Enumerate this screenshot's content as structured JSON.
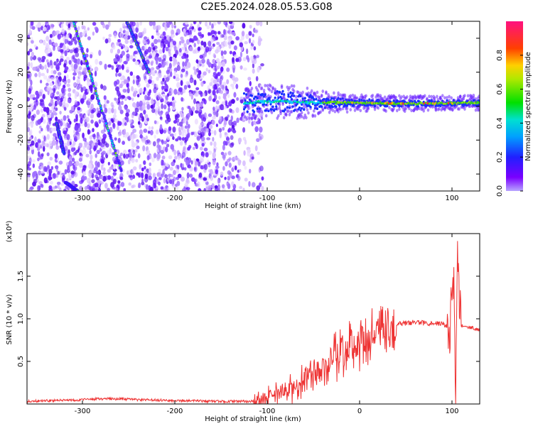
{
  "title": "C2E5.2024.028.05.53.G08",
  "chart_data": [
    {
      "type": "heatmap",
      "xlabel": "Height of straight line (km)",
      "ylabel": "Frequency (Hz)",
      "xlim": [
        -360,
        130
      ],
      "ylim": [
        -50,
        50
      ],
      "xticks": [
        -300,
        -200,
        -100,
        0,
        100
      ],
      "xtick_labels": [
        "-300",
        "-200",
        "-100",
        "0",
        "100"
      ],
      "yticks": [
        -40,
        -20,
        0,
        20,
        40
      ],
      "ytick_labels": [
        "-40",
        "-20",
        "0",
        "20",
        "40"
      ],
      "colorbar": {
        "label": "Normalized spectral amplitude",
        "range": [
          0.0,
          1.0
        ],
        "ticks": [
          0.0,
          0.2,
          0.4,
          0.6,
          0.8
        ],
        "tick_labels": [
          "0.0",
          "0.2",
          "0.4",
          "0.6",
          "0.8"
        ],
        "colormap": "purple-blue-cyan-green-yellow-red-magenta"
      },
      "noise_region_x": [
        -360,
        -110
      ],
      "signal_band": [
        {
          "x": -125,
          "freq": 2,
          "width": 8
        },
        {
          "x": -90,
          "freq": 3,
          "width": 9
        },
        {
          "x": -60,
          "freq": 2,
          "width": 7
        },
        {
          "x": -30,
          "freq": 2,
          "width": 4
        },
        {
          "x": 0,
          "freq": 2,
          "width": 3
        },
        {
          "x": 50,
          "freq": 1.5,
          "width": 2.5
        },
        {
          "x": 130,
          "freq": 2,
          "width": 2.5
        }
      ],
      "slanted_tracks": [
        {
          "x": [
            -328,
            -320
          ],
          "freq": [
            -10,
            -28
          ]
        },
        {
          "x": [
            -310,
            -258
          ],
          "freq": [
            50,
            -38
          ]
        },
        {
          "x": [
            -252,
            -228
          ],
          "freq": [
            50,
            20
          ]
        },
        {
          "x": [
            -318,
            -305
          ],
          "freq": [
            -45,
            -50
          ]
        }
      ]
    },
    {
      "type": "line",
      "xlabel": "Height of straight line (km)",
      "ylabel": "SNR (10 * v/v)",
      "y_multiplier": "(x10⁴)",
      "xlim": [
        -360,
        130
      ],
      "ylim": [
        0,
        2.0
      ],
      "xticks": [
        -300,
        -200,
        -100,
        0,
        100
      ],
      "xtick_labels": [
        "-300",
        "-200",
        "-100",
        "0",
        "100"
      ],
      "yticks": [
        0.5,
        1.0,
        1.5
      ],
      "ytick_labels": [
        "0.5",
        "1.0",
        "1.5"
      ],
      "series": [
        {
          "color": "#ee3333",
          "x": [
            -360,
            -340,
            -300,
            -280,
            -260,
            -240,
            -200,
            -150,
            -120,
            -110,
            -100,
            -90,
            -80,
            -70,
            -60,
            -50,
            -40,
            -30,
            -20,
            -10,
            0,
            10,
            20,
            30,
            40,
            50,
            60,
            70,
            80,
            90,
            98,
            102,
            104,
            106,
            110,
            120,
            130
          ],
          "y": [
            0.03,
            0.04,
            0.05,
            0.06,
            0.06,
            0.05,
            0.04,
            0.03,
            0.03,
            0.05,
            0.08,
            0.15,
            0.2,
            0.25,
            0.32,
            0.42,
            0.5,
            0.6,
            0.68,
            0.75,
            0.8,
            0.87,
            0.92,
            0.94,
            0.95,
            0.95,
            0.96,
            0.95,
            0.95,
            0.94,
            0.9,
            1.55,
            0.1,
            1.6,
            0.92,
            0.9,
            0.87
          ]
        }
      ]
    }
  ]
}
